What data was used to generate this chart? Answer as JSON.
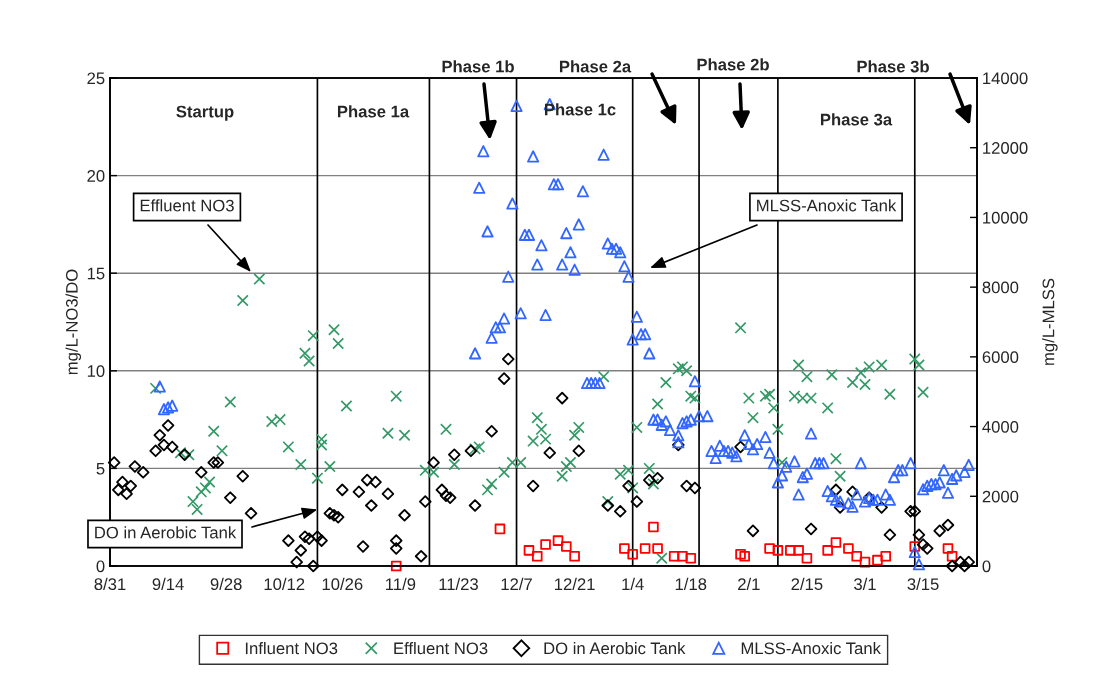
{
  "chart_data": {
    "type": "scatter",
    "ylabel": "mg/L-NO3/DO",
    "y2label": "mg/L-MLSS",
    "xlim": [
      "2000-08-31",
      "2001-03-28"
    ],
    "xticks": [
      {
        "value": "2000-08-31",
        "label": "8/31"
      },
      {
        "value": "2000-09-14",
        "label": "9/14"
      },
      {
        "value": "2000-09-28",
        "label": "9/28"
      },
      {
        "value": "2000-10-12",
        "label": "10/12"
      },
      {
        "value": "2000-10-26",
        "label": "10/26"
      },
      {
        "value": "2000-11-09",
        "label": "11/9"
      },
      {
        "value": "2000-11-23",
        "label": "11/23"
      },
      {
        "value": "2000-12-07",
        "label": "12/7"
      },
      {
        "value": "2000-12-21",
        "label": "12/21"
      },
      {
        "value": "2001-01-04",
        "label": "1/4"
      },
      {
        "value": "2001-01-18",
        "label": "1/18"
      },
      {
        "value": "2001-02-01",
        "label": "2/1"
      },
      {
        "value": "2001-02-15",
        "label": "2/15"
      },
      {
        "value": "2001-03-01",
        "label": "3/1"
      },
      {
        "value": "2001-03-15",
        "label": "3/15"
      }
    ],
    "ylim": [
      0,
      25
    ],
    "yticks": [
      0,
      5,
      10,
      15,
      20,
      25
    ],
    "y2lim": [
      0,
      14000
    ],
    "y2ticks": [
      0,
      2000,
      4000,
      6000,
      8000,
      10000,
      12000,
      14000
    ],
    "grid": "y",
    "legend": "bottom",
    "series": [
      {
        "name": "Influent NO3",
        "color": "#ff0000",
        "marker": "square",
        "x": [
          "2000-11-08",
          "2000-12-03",
          "2000-12-10",
          "2000-12-12",
          "2000-12-14",
          "2000-12-17",
          "2000-12-19",
          "2000-12-21",
          "2001-01-02",
          "2001-01-04",
          "2001-01-07",
          "2001-01-09",
          "2001-01-10",
          "2001-01-14",
          "2001-01-16",
          "2001-01-18",
          "2001-01-30",
          "2001-01-31",
          "2001-02-06",
          "2001-02-08",
          "2001-02-11",
          "2001-02-13",
          "2001-02-15",
          "2001-02-20",
          "2001-02-22",
          "2001-02-25",
          "2001-02-27",
          "2001-03-01",
          "2001-03-04",
          "2001-03-06",
          "2001-03-13",
          "2001-03-21",
          "2001-03-22"
        ],
        "values": [
          0,
          1.9,
          0.8,
          0.5,
          1.1,
          1.3,
          1.0,
          0.5,
          0.9,
          0.6,
          0.9,
          2.0,
          0.9,
          0.5,
          0.5,
          0.4,
          0.6,
          0.5,
          0.9,
          0.8,
          0.8,
          0.8,
          0.4,
          0.8,
          1.2,
          0.9,
          0.5,
          0.2,
          0.3,
          0.5,
          1.0,
          0.9,
          0.5
        ]
      },
      {
        "name": "Effluent NO3",
        "color": "#339966",
        "marker": "cross",
        "x": [
          "2000-09-11",
          "2000-09-17",
          "2000-09-19",
          "2000-09-20",
          "2000-09-21",
          "2000-09-22",
          "2000-09-23",
          "2000-09-24",
          "2000-09-25",
          "2000-09-27",
          "2000-09-29",
          "2000-10-02",
          "2000-10-06",
          "2000-10-09",
          "2000-10-11",
          "2000-10-13",
          "2000-10-16",
          "2000-10-17",
          "2000-10-18",
          "2000-10-19",
          "2000-10-20",
          "2000-10-21",
          "2000-10-21",
          "2000-10-23",
          "2000-10-24",
          "2000-10-25",
          "2000-10-27",
          "2000-11-06",
          "2000-11-08",
          "2000-11-10",
          "2000-11-15",
          "2000-11-17",
          "2000-11-20",
          "2000-11-22",
          "2000-11-27",
          "2000-11-28",
          "2000-11-30",
          "2000-12-01",
          "2000-12-04",
          "2000-12-06",
          "2000-12-08",
          "2000-12-11",
          "2000-12-12",
          "2000-12-13",
          "2000-12-14",
          "2000-12-18",
          "2000-12-19",
          "2000-12-20",
          "2000-12-21",
          "2000-12-22",
          "2000-12-28",
          "2000-12-29",
          "2001-01-01",
          "2001-01-03",
          "2001-01-04",
          "2001-01-05",
          "2001-01-08",
          "2001-01-09",
          "2001-01-10",
          "2001-01-11",
          "2001-01-12",
          "2001-01-15",
          "2001-01-16",
          "2001-01-17",
          "2001-01-18",
          "2001-01-19",
          "2001-01-30",
          "2001-02-01",
          "2001-02-02",
          "2001-02-05",
          "2001-02-06",
          "2001-02-07",
          "2001-02-08",
          "2001-02-09",
          "2001-02-12",
          "2001-02-13",
          "2001-02-14",
          "2001-02-15",
          "2001-02-16",
          "2001-02-20",
          "2001-02-21",
          "2001-02-22",
          "2001-02-23",
          "2001-02-26",
          "2001-02-28",
          "2001-03-01",
          "2001-03-02",
          "2001-03-05",
          "2001-03-07",
          "2001-03-13",
          "2001-03-14",
          "2001-03-15"
        ],
        "values": [
          9.1,
          5.8,
          5.7,
          3.3,
          2.9,
          3.8,
          4.0,
          4.3,
          6.9,
          5.9,
          8.4,
          13.6,
          14.7,
          7.4,
          7.5,
          6.1,
          5.2,
          10.9,
          10.5,
          11.8,
          4.5,
          6.2,
          6.5,
          5.1,
          12.1,
          11.4,
          8.2,
          6.8,
          8.7,
          6.7,
          4.9,
          4.8,
          7.0,
          5.2,
          6.0,
          6.1,
          3.9,
          4.2,
          4.8,
          5.3,
          5.3,
          6.4,
          7.6,
          7.0,
          6.5,
          4.6,
          5.1,
          5.3,
          6.7,
          7.1,
          9.7,
          3.3,
          4.7,
          4.9,
          4.0,
          7.1,
          5.0,
          4.2,
          8.3,
          0.4,
          9.4,
          10.1,
          10.2,
          10.0,
          8.7,
          8.6,
          12.2,
          8.6,
          7.6,
          8.7,
          8.8,
          8.1,
          7.0,
          5.3,
          8.7,
          10.3,
          8.6,
          9.7,
          8.6,
          8.1,
          9.8,
          5.5,
          4.6,
          9.4,
          9.9,
          9.3,
          10.2,
          10.3,
          8.8,
          10.6,
          10.3,
          8.9
        ]
      },
      {
        "name": "DO in Aerobic Tank",
        "color": "#000000",
        "marker": "diamond",
        "x": [
          "2000-09-01",
          "2000-09-02",
          "2000-09-03",
          "2000-09-04",
          "2000-09-05",
          "2000-09-06",
          "2000-09-08",
          "2000-09-11",
          "2000-09-12",
          "2000-09-13",
          "2000-09-14",
          "2000-09-15",
          "2000-09-18",
          "2000-09-22",
          "2000-09-25",
          "2000-09-26",
          "2000-09-29",
          "2000-10-02",
          "2000-10-04",
          "2000-10-13",
          "2000-10-15",
          "2000-10-16",
          "2000-10-17",
          "2000-10-18",
          "2000-10-19",
          "2000-10-20",
          "2000-10-21",
          "2000-10-23",
          "2000-10-24",
          "2000-10-25",
          "2000-10-26",
          "2000-10-30",
          "2000-10-31",
          "2000-11-01",
          "2000-11-02",
          "2000-11-03",
          "2000-11-06",
          "2000-11-08",
          "2000-11-08",
          "2000-11-10",
          "2000-11-14",
          "2000-11-15",
          "2000-11-17",
          "2000-11-19",
          "2000-11-20",
          "2000-11-21",
          "2000-11-22",
          "2000-11-26",
          "2000-11-27",
          "2000-12-01",
          "2000-12-04",
          "2000-12-05",
          "2000-12-11",
          "2000-12-15",
          "2000-12-18",
          "2000-12-22",
          "2000-12-29",
          "2001-01-01",
          "2001-01-03",
          "2001-01-05",
          "2001-01-08",
          "2001-01-10",
          "2001-01-15",
          "2001-01-17",
          "2001-01-19",
          "2001-01-30",
          "2001-02-02",
          "2001-02-16",
          "2001-02-22",
          "2001-02-23",
          "2001-02-26",
          "2001-03-02",
          "2001-03-05",
          "2001-03-07",
          "2001-03-12",
          "2001-03-13",
          "2001-03-14",
          "2001-03-15",
          "2001-03-16",
          "2001-03-19",
          "2001-03-21",
          "2001-03-22",
          "2001-03-24",
          "2001-03-25",
          "2001-03-26"
        ],
        "values": [
          5.3,
          3.9,
          4.3,
          3.7,
          4.1,
          5.1,
          4.8,
          5.9,
          6.7,
          6.2,
          7.2,
          6.1,
          5.7,
          4.8,
          5.3,
          5.3,
          3.5,
          4.6,
          2.7,
          1.3,
          0.2,
          0.8,
          1.5,
          1.4,
          0,
          1.5,
          1.3,
          2.7,
          2.6,
          2.5,
          3.9,
          3.8,
          1.0,
          4.4,
          3.1,
          4.3,
          3.7,
          1.3,
          0.9,
          2.6,
          0.5,
          3.3,
          5.3,
          3.9,
          3.6,
          3.5,
          5.7,
          5.9,
          3.1,
          6.9,
          9.6,
          10.6,
          4.1,
          5.8,
          8.6,
          5.9,
          3.1,
          2.8,
          4.1,
          3.3,
          4.4,
          4.5,
          6.2,
          4.1,
          4.0,
          6.1,
          1.8,
          1.9,
          3.9,
          3.0,
          3.8,
          3.5,
          3.0,
          1.6,
          2.8,
          2.8,
          1.6,
          1.1,
          0.9,
          1.8,
          2.1,
          0,
          0.2,
          0,
          0.2
        ]
      },
      {
        "name": "MLSS-Anoxic Tank",
        "color": "#3366ff",
        "marker": "triangle",
        "axis": "y2",
        "x": [
          "2000-09-12",
          "2000-09-13",
          "2000-09-14",
          "2000-09-15",
          "2000-11-27",
          "2000-11-28",
          "2000-11-29",
          "2000-11-30",
          "2000-12-01",
          "2000-12-02",
          "2000-12-03",
          "2000-12-04",
          "2000-12-05",
          "2000-12-06",
          "2000-12-07",
          "2000-12-08",
          "2000-12-09",
          "2000-12-10",
          "2000-12-11",
          "2000-12-12",
          "2000-12-13",
          "2000-12-14",
          "2000-12-15",
          "2000-12-16",
          "2000-12-17",
          "2000-12-18",
          "2000-12-19",
          "2000-12-20",
          "2000-12-21",
          "2000-12-22",
          "2000-12-23",
          "2000-12-24",
          "2000-12-25",
          "2000-12-26",
          "2000-12-27",
          "2000-12-28",
          "2000-12-29",
          "2000-12-30",
          "2000-12-31",
          "2001-01-01",
          "2001-01-02",
          "2001-01-03",
          "2001-01-04",
          "2001-01-05",
          "2001-01-06",
          "2001-01-07",
          "2001-01-08",
          "2001-01-09",
          "2001-01-10",
          "2001-01-11",
          "2001-01-12",
          "2001-01-13",
          "2001-01-15",
          "2001-01-15",
          "2001-01-16",
          "2001-01-17",
          "2001-01-18",
          "2001-01-19",
          "2001-01-20",
          "2001-01-22",
          "2001-01-23",
          "2001-01-24",
          "2001-01-25",
          "2001-01-26",
          "2001-01-27",
          "2001-01-28",
          "2001-01-29",
          "2001-01-31",
          "2001-02-01",
          "2001-02-02",
          "2001-02-03",
          "2001-02-05",
          "2001-02-06",
          "2001-02-07",
          "2001-02-08",
          "2001-02-09",
          "2001-02-10",
          "2001-02-12",
          "2001-02-13",
          "2001-02-14",
          "2001-02-15",
          "2001-02-16",
          "2001-02-17",
          "2001-02-18",
          "2001-02-19",
          "2001-02-20",
          "2001-02-21",
          "2001-02-22",
          "2001-02-23",
          "2001-02-25",
          "2001-02-26",
          "2001-02-27",
          "2001-02-28",
          "2001-03-01",
          "2001-03-02",
          "2001-03-03",
          "2001-03-04",
          "2001-03-06",
          "2001-03-07",
          "2001-03-08",
          "2001-03-09",
          "2001-03-10",
          "2001-03-12",
          "2001-03-13",
          "2001-03-14",
          "2001-03-15",
          "2001-03-16",
          "2001-03-17",
          "2001-03-18",
          "2001-03-19",
          "2001-03-20",
          "2001-03-21",
          "2001-03-22",
          "2001-03-23",
          "2001-03-25",
          "2001-03-26"
        ],
        "values": [
          5150,
          4500,
          4550,
          4600,
          6100,
          10850,
          11900,
          9600,
          6550,
          6850,
          6850,
          7100,
          8300,
          10400,
          13200,
          7250,
          9500,
          9500,
          11750,
          8650,
          9200,
          7200,
          13250,
          10950,
          10950,
          8650,
          9550,
          9000,
          8500,
          9800,
          10750,
          5250,
          5250,
          5250,
          5250,
          11800,
          9250,
          9100,
          9100,
          9000,
          8600,
          8300,
          6500,
          7150,
          6650,
          6650,
          6100,
          4200,
          4200,
          4050,
          4150,
          3900,
          3550,
          3750,
          4100,
          4150,
          4200,
          5300,
          4300,
          4300,
          3300,
          3100,
          3450,
          3300,
          3300,
          3250,
          3150,
          3750,
          3500,
          3350,
          3500,
          3700,
          3250,
          2950,
          2400,
          2600,
          2850,
          3000,
          2050,
          2550,
          2650,
          3800,
          2950,
          2950,
          2950,
          2150,
          2000,
          1900,
          1850,
          1800,
          1700,
          2050,
          2950,
          1850,
          1950,
          1900,
          1900,
          2050,
          1900,
          2550,
          2750,
          2750,
          2950,
          400,
          50,
          2200,
          2300,
          2350,
          2350,
          2400,
          2750,
          2100,
          2500,
          2600,
          2700,
          2900
        ]
      }
    ],
    "ref_lines": [
      {
        "axis": "x",
        "value": "2000-10-20"
      },
      {
        "axis": "x",
        "value": "2000-11-16"
      },
      {
        "axis": "x",
        "value": "2000-12-07"
      },
      {
        "axis": "x",
        "value": "2001-01-04"
      },
      {
        "axis": "x",
        "value": "2001-01-20"
      },
      {
        "axis": "x",
        "value": "2001-02-08"
      },
      {
        "axis": "x",
        "value": "2001-03-13"
      }
    ],
    "annotations": [
      "Startup",
      "Phase 1a",
      "Phase 1b",
      "Phase 1c",
      "Phase 2a",
      "Phase 2b",
      "Phase 3a",
      "Phase 3b",
      "Effluent NO3",
      "MLSS-Anoxic Tank",
      {
        "text": "DO in Aerobic Tank",
        "x": "2000-10-20",
        "y": 2.9
      }
    ]
  }
}
